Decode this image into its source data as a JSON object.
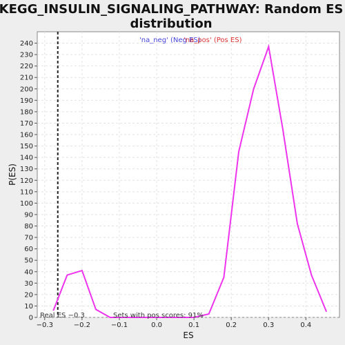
{
  "chart_data": {
    "type": "line",
    "title_line1": "KEGG_INSULIN_SIGNALING_PATHWAY: Random ES",
    "title_line2": "distribution",
    "xlabel": "ES",
    "ylabel": "P(ES)",
    "xlim": [
      -0.32,
      0.49
    ],
    "ylim": [
      0,
      250
    ],
    "xticks": [
      -0.3,
      -0.2,
      -0.1,
      0.0,
      0.1,
      0.2,
      0.3,
      0.4
    ],
    "xtick_labels": [
      "−0.3",
      "−0.2",
      "−0.1",
      "0.0",
      "0.1",
      "0.2",
      "0.3",
      "0.4"
    ],
    "yticks": [
      0,
      10,
      20,
      30,
      40,
      50,
      60,
      70,
      80,
      90,
      100,
      110,
      120,
      130,
      140,
      150,
      160,
      170,
      180,
      190,
      200,
      210,
      220,
      230,
      240
    ],
    "legend": [
      {
        "label": "'na_neg' (Neg ES)",
        "color": "#4444dd"
      },
      {
        "label": "'na_pos' (Pos ES)",
        "color": "#dd3333"
      }
    ],
    "legend_placement": "top-center",
    "grid": true,
    "series": [
      {
        "color": "#ee33ee",
        "x": [
          -0.277,
          -0.24,
          -0.2,
          -0.163,
          -0.125,
          -0.088,
          -0.05,
          -0.013,
          0.025,
          0.062,
          0.1,
          0.14,
          0.18,
          0.22,
          0.26,
          0.3,
          0.338,
          0.377,
          0.415,
          0.455
        ],
        "y": [
          6,
          37,
          41,
          7,
          0,
          0,
          0,
          0,
          0,
          0,
          0,
          3,
          35,
          145,
          200,
          237,
          165,
          82,
          37,
          5
        ]
      }
    ],
    "real_es": -0.265,
    "real_es_label": "Real ES −0.3",
    "pos_scores_label": "Sets with pos scores: 91%"
  }
}
